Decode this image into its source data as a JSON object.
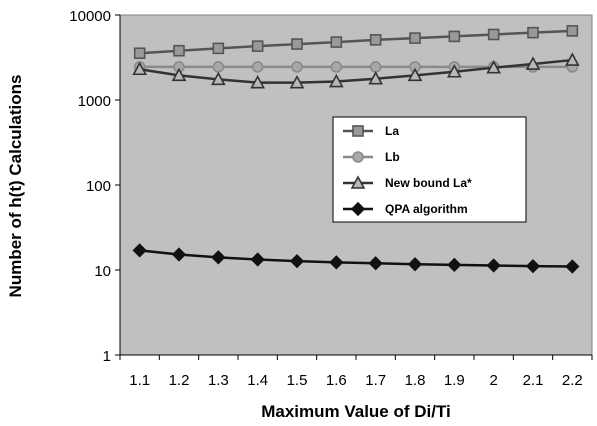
{
  "chart_data": {
    "type": "line",
    "x": [
      1.1,
      1.2,
      1.3,
      1.4,
      1.5,
      1.6,
      1.7,
      1.8,
      1.9,
      2,
      2.1,
      2.2
    ],
    "x_tick_labels": [
      "1.1",
      "1.2",
      "1.3",
      "1.4",
      "1.5",
      "1.6",
      "1.7",
      "1.8",
      "1.9",
      "2",
      "2.1",
      "2.2"
    ],
    "y_scale": "log",
    "ylim": [
      1,
      10000
    ],
    "y_ticks": [
      1,
      10,
      100,
      1000,
      10000
    ],
    "y_tick_labels": [
      "1",
      "10",
      "100",
      "1000",
      "10000"
    ],
    "xlabel": "Maximum Value of Di/Ti",
    "ylabel": "Number of h(t) Calculations",
    "grid": false,
    "legend_position": "center-right",
    "series": [
      {
        "name": "La",
        "marker": "square",
        "color": "#555555",
        "marker_fill": "#999999",
        "values": [
          3550,
          3800,
          4050,
          4300,
          4550,
          4800,
          5100,
          5350,
          5600,
          5900,
          6200,
          6500
        ]
      },
      {
        "name": "Lb",
        "marker": "circle",
        "color": "#8a8a8a",
        "marker_fill": "#a8a8a8",
        "values": [
          2450,
          2450,
          2450,
          2450,
          2450,
          2450,
          2450,
          2450,
          2450,
          2450,
          2450,
          2450
        ]
      },
      {
        "name": "New bound La*",
        "marker": "triangle",
        "color": "#333333",
        "marker_fill": "#b8b8b8",
        "values": [
          2300,
          1950,
          1750,
          1600,
          1600,
          1650,
          1780,
          1950,
          2150,
          2400,
          2650,
          2950
        ]
      },
      {
        "name": "QPA algorithm",
        "marker": "diamond",
        "color": "#111111",
        "marker_fill": "#111111",
        "values": [
          17,
          15.2,
          14.1,
          13.3,
          12.7,
          12.3,
          12.0,
          11.7,
          11.5,
          11.3,
          11.1,
          11.0
        ]
      }
    ],
    "plot_background": "#c0c0c0",
    "legend_background": "#ffffff"
  }
}
